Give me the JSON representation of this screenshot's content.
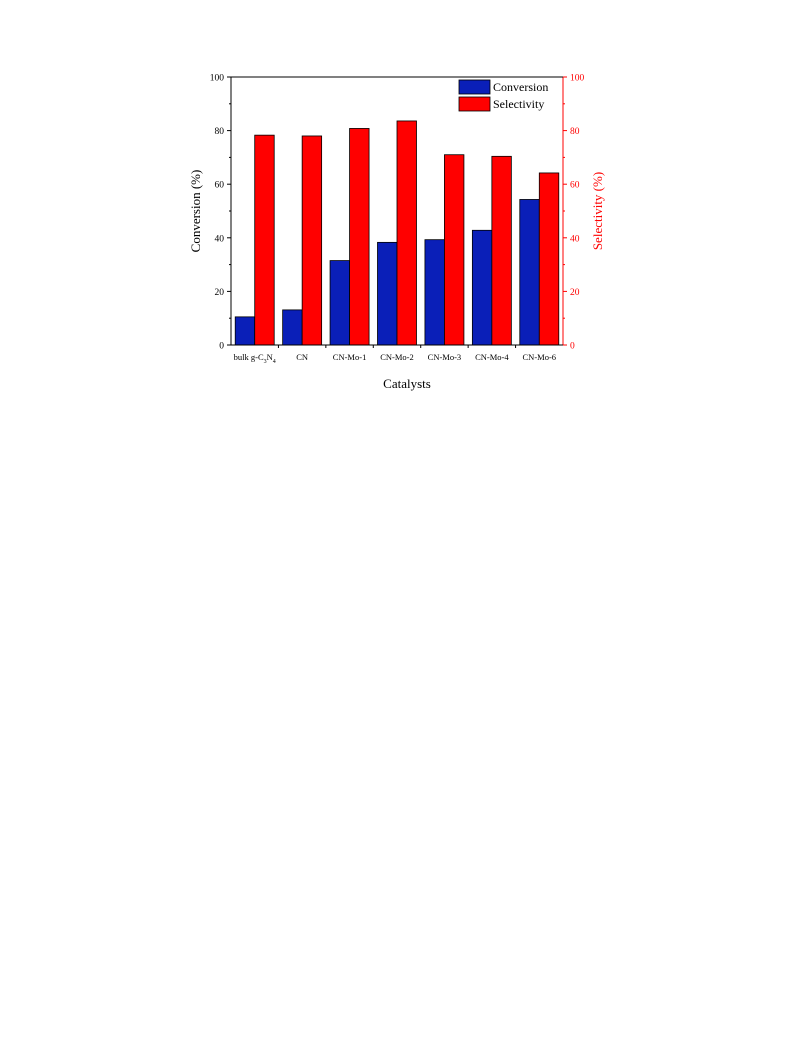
{
  "chart_data": {
    "type": "bar",
    "categories": [
      "bulk g-C3N4",
      "CN",
      "CN-Mo-1",
      "CN-Mo-2",
      "CN-Mo-3",
      "CN-Mo-4",
      "CN-Mo-6"
    ],
    "category_display": {
      "bulk_prefix": "bulk g-C",
      "sub1": "3",
      "mid": "N",
      "sub2": "4"
    },
    "series": [
      {
        "name": "Conversion",
        "axis": "left",
        "color": "#0a1fb8",
        "values": [
          10.5,
          13.1,
          31.5,
          38.3,
          39.3,
          42.8,
          54.3
        ]
      },
      {
        "name": "Selectivity",
        "axis": "right",
        "color": "#ff0000",
        "values": [
          78.3,
          78.0,
          80.8,
          83.6,
          71.0,
          70.4,
          64.2
        ]
      }
    ],
    "xlabel": "Catalysts",
    "ylabel": "Conversion (%)",
    "ylabel_right": "Selectivity (%)",
    "ylim": [
      0,
      100
    ],
    "ylim_right": [
      0,
      100
    ],
    "yticks": [
      "0",
      "20",
      "40",
      "60",
      "80",
      "100"
    ],
    "yticks_right": [
      "0",
      "20",
      "40",
      "60",
      "80",
      "100"
    ],
    "legend_position": "top-right",
    "grid": false,
    "colors": {
      "axis": "#000000",
      "right_axis": "#ff0000"
    }
  }
}
